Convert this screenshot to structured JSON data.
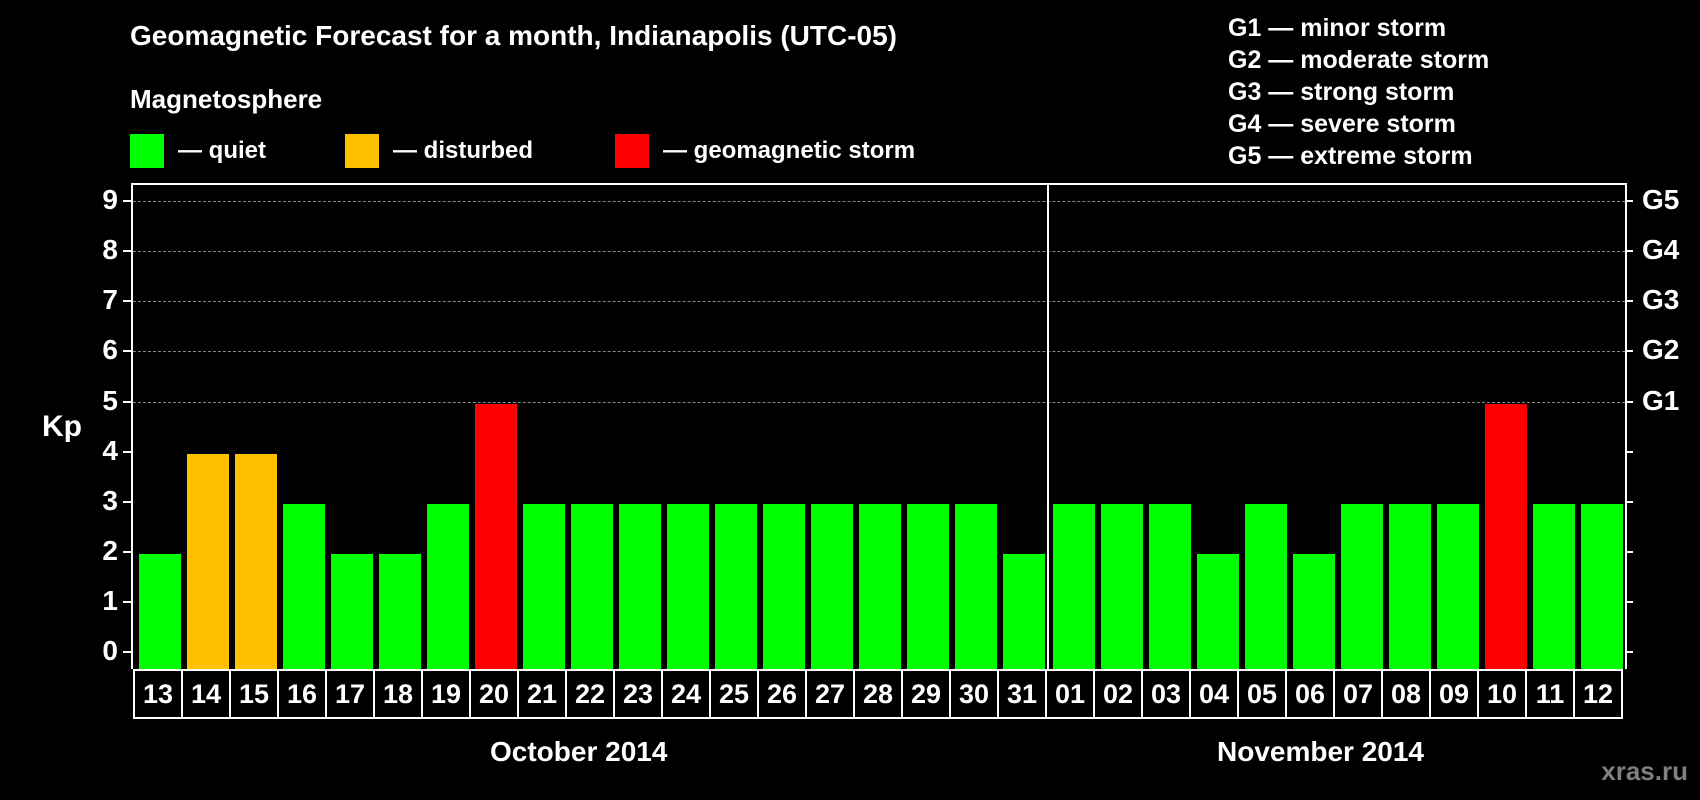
{
  "title": "Geomagnetic Forecast for a month, Indianapolis (UTC-05)",
  "subtitle": "Magnetosphere",
  "legend": [
    {
      "label": "— quiet",
      "color": "#00ff00"
    },
    {
      "label": "— disturbed",
      "color": "#ffc000"
    },
    {
      "label": "— geomagnetic storm",
      "color": "#ff0000"
    }
  ],
  "g_scale_legend": [
    "G1 — minor storm",
    "G2 — moderate storm",
    "G3 — strong storm",
    "G4 — severe storm",
    "G5 — extreme storm"
  ],
  "y_axis_label": "Kp",
  "y_ticks": [
    "0",
    "1",
    "2",
    "3",
    "4",
    "5",
    "6",
    "7",
    "8",
    "9"
  ],
  "right_ticks": [
    {
      "kp": 5,
      "label": "G1"
    },
    {
      "kp": 6,
      "label": "G2"
    },
    {
      "kp": 7,
      "label": "G3"
    },
    {
      "kp": 8,
      "label": "G4"
    },
    {
      "kp": 9,
      "label": "G5"
    }
  ],
  "months": [
    {
      "label": "October 2014"
    },
    {
      "label": "November 2014"
    }
  ],
  "watermark": "xras.ru",
  "colors": {
    "quiet": "#00ff00",
    "disturbed": "#ffc000",
    "storm": "#ff0000"
  },
  "chart_data": {
    "type": "bar",
    "title": "Geomagnetic Forecast for a month, Indianapolis (UTC-05)",
    "xlabel": "October 2014 / November 2014",
    "ylabel": "Kp",
    "ylim": [
      0,
      9
    ],
    "grid": true,
    "categories": [
      "13",
      "14",
      "15",
      "16",
      "17",
      "18",
      "19",
      "20",
      "21",
      "22",
      "23",
      "24",
      "25",
      "26",
      "27",
      "28",
      "29",
      "30",
      "31",
      "01",
      "02",
      "03",
      "04",
      "05",
      "06",
      "07",
      "08",
      "09",
      "10",
      "11",
      "12"
    ],
    "values": [
      2,
      4,
      4,
      3,
      2,
      2,
      3,
      5,
      3,
      3,
      3,
      3,
      3,
      3,
      3,
      3,
      3,
      3,
      2,
      3,
      3,
      3,
      2,
      3,
      2,
      3,
      3,
      3,
      5,
      3,
      3
    ],
    "status": [
      "quiet",
      "disturbed",
      "disturbed",
      "quiet",
      "quiet",
      "quiet",
      "quiet",
      "storm",
      "quiet",
      "quiet",
      "quiet",
      "quiet",
      "quiet",
      "quiet",
      "quiet",
      "quiet",
      "quiet",
      "quiet",
      "quiet",
      "quiet",
      "quiet",
      "quiet",
      "quiet",
      "quiet",
      "quiet",
      "quiet",
      "quiet",
      "quiet",
      "storm",
      "quiet",
      "quiet"
    ],
    "month_split_index": 19,
    "legend": [
      "quiet",
      "disturbed",
      "geomagnetic storm"
    ],
    "right_axis": {
      "5": "G1",
      "6": "G2",
      "7": "G3",
      "8": "G4",
      "9": "G5"
    }
  }
}
